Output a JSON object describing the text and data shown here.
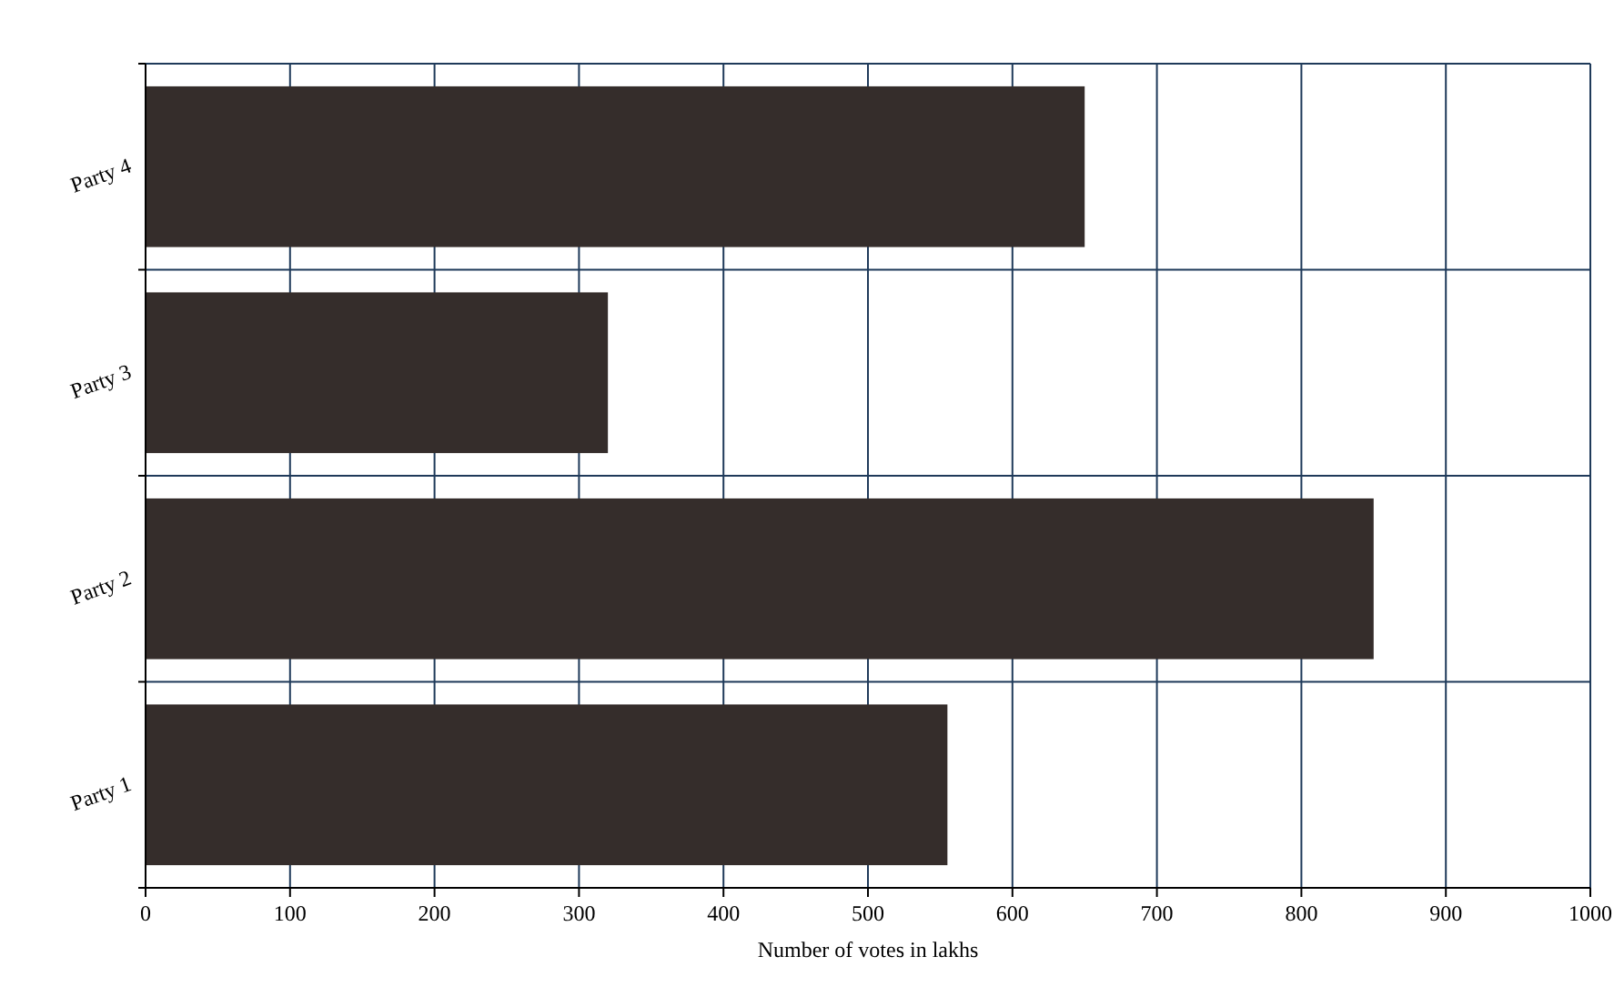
{
  "chart_data": {
    "type": "bar",
    "orientation": "horizontal",
    "categories": [
      "Party 4",
      "Party 3",
      "Party 2",
      "Party 1"
    ],
    "values": [
      650,
      320,
      850,
      555
    ],
    "color": "#352d2b",
    "xlabel": "Number of votes in lakhs",
    "xlim": [
      0,
      1000
    ],
    "xticks": [
      0,
      100,
      200,
      300,
      400,
      500,
      600,
      700,
      800,
      900,
      1000
    ],
    "grid": true
  }
}
